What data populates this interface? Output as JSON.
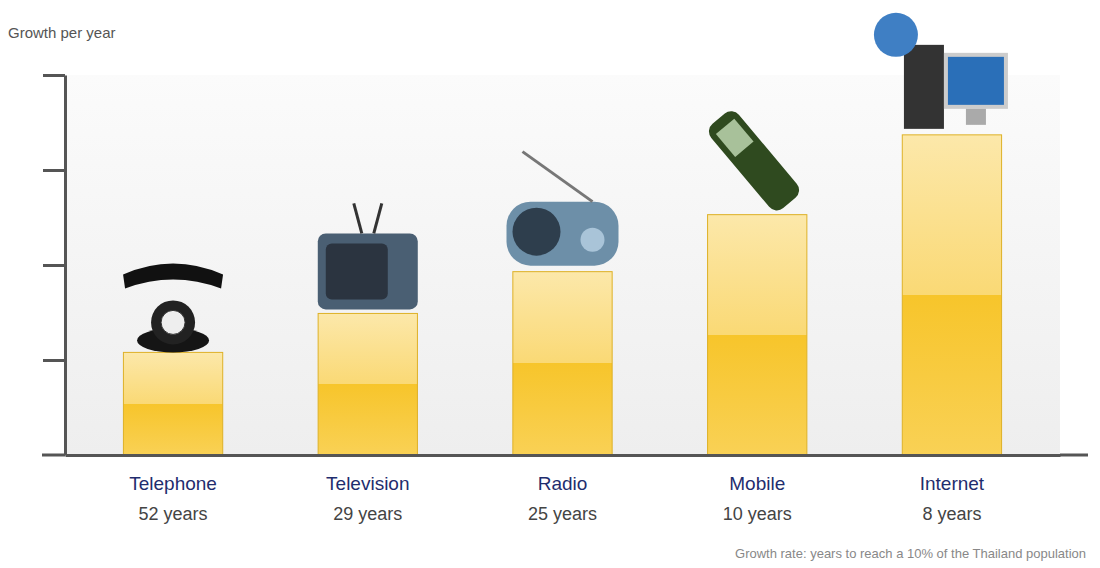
{
  "chart_data": {
    "type": "bar",
    "ylabel": "Growth per year",
    "caption": "Growth rate: years to reach a 10% of the Thailand population",
    "categories": [
      "Telephone",
      "Television",
      "Radio",
      "Mobile",
      "Internet"
    ],
    "category_sublabels": [
      "52 years",
      "29 years",
      "25 years",
      "10 years",
      "8 years"
    ],
    "values": [
      1.08,
      1.49,
      1.93,
      2.53,
      3.37
    ],
    "color": "#f7c52b",
    "ylim": [
      0,
      4
    ],
    "yticks": [
      1,
      2,
      3,
      4
    ],
    "tick_labels": "x",
    "grid": false
  }
}
